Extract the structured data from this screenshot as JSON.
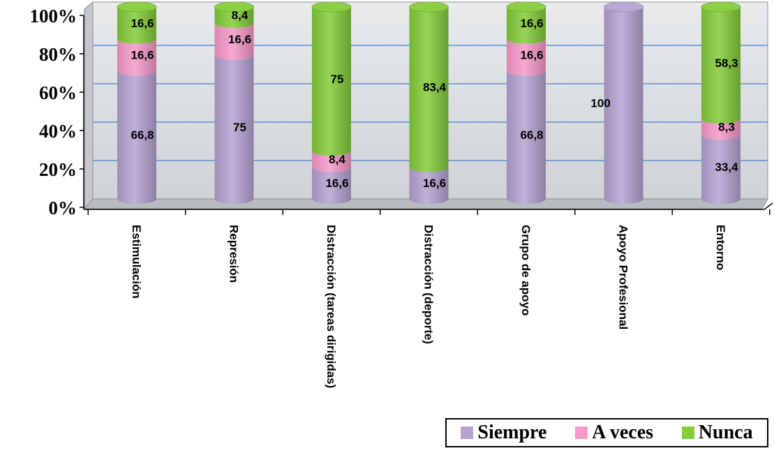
{
  "chart_data": {
    "type": "bar",
    "stacked": true,
    "percent": true,
    "style": "3d-cylinder",
    "categories": [
      "Estimulación",
      "Represión",
      "Distracción (tareas dirigidas)",
      "Distracción (deporte)",
      "Grupo de apoyo",
      "Apoyo Profesional",
      "Entorno"
    ],
    "series": [
      {
        "name": "Siempre",
        "color": "#b6a3d2",
        "values": [
          66.8,
          75,
          16.6,
          16.6,
          66.8,
          100,
          33.4
        ],
        "labels": [
          "66,8",
          "75",
          "16,6",
          "16,6",
          "66,8",
          "100",
          "33,4"
        ]
      },
      {
        "name": "A veces",
        "color": "#f79ac9",
        "values": [
          16.6,
          16.6,
          8.4,
          0,
          16.6,
          0,
          8.3
        ],
        "labels": [
          "16,6",
          "16,6",
          "8,4",
          "",
          "16,6",
          "",
          "8,3"
        ]
      },
      {
        "name": "Nunca",
        "color": "#84cc3a",
        "values": [
          16.6,
          8.4,
          75,
          83.4,
          16.6,
          0,
          58.3
        ],
        "labels": [
          "16,6",
          "8,4",
          "75",
          "83,4",
          "16,6",
          "",
          "58,3"
        ]
      }
    ],
    "yticks": [
      "0%",
      "20%",
      "40%",
      "60%",
      "80%",
      "100%"
    ],
    "ylim": [
      0,
      100
    ],
    "grid": true,
    "legend": "bottom-right"
  }
}
